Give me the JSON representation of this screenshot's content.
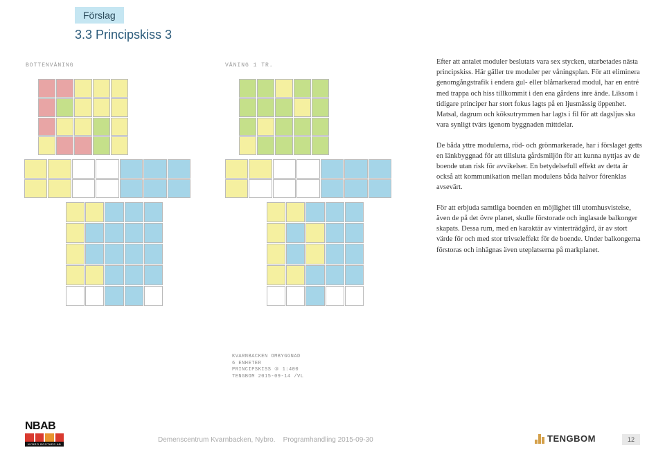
{
  "tag": "Förslag",
  "heading": "3.3 Principskiss 3",
  "paragraphs": [
    "Efter att antalet moduler beslutats vara sex stycken, utarbetades nästa principskiss. Här gäller tre moduler per våningsplan. För att eliminera genomgångstrafik i endera gul- eller blåmarkerad modul, har en entré med trappa och hiss tillkommit i den ena gårdens inre ände. Liksom i tidigare principer har stort fokus lagts på en ljusmässig öppenhet. Matsal, dagrum och köksutrymmen har lagts i fil för att dagsljus ska vara synligt tvärs igenom byggnaden mittdelar.",
    "De båda yttre modulerna, röd- och grönmarkerade, har i förslaget getts en länkbyggnad för att tillsluta gårdsmiljön för att kunna nyttjas av de boende utan risk för avvikelser. En betydelsefull effekt av detta är också att kommunikation mellan modulens båda halvor förenklas avsevärt.",
    "För att erbjuda samtliga boenden en möjlighet till utomhusvistelse, även de på det övre planet, skulle förstorade och inglasade balkonger skapats. Dessa rum, med en karaktär av vinterträdgård, är av stort värde för och med stor trivseleffekt för de boende. Under balkongerna förstoras och inhägnas även uteplatserna på markplanet."
  ],
  "plan_labels": {
    "left": "BOTTENVÅNING",
    "right": "VÅNING 1 TR."
  },
  "annotations": [
    "KVARNBACKEN  OMBYGGNAD",
    "6 ENHETER",
    "PRINCIPSKISS ③  1:400",
    "TENGBOM 2015-09-14 /VL"
  ],
  "colors": {
    "red": "#e8a5a5",
    "yellow": "#f5f0a0",
    "green": "#c5e08a",
    "blue": "#a5d5e8",
    "tag_bg": "#c5e6f2",
    "heading": "#2a5a7a",
    "nbab_red": "#d93a2f",
    "nbab_orange": "#e8942f",
    "tengbom_gold": "#d4a04a"
  },
  "footer": {
    "doc_title": "Demenscentrum Kvarnbacken, Nybro.",
    "doc_subtitle": "Programhandling 2015-09-30",
    "page": "12",
    "nbab": "NBAB",
    "nbab_sub": "NYBRO BOSTADS AB",
    "tengbom": "TENGBOM"
  },
  "floorplan": {
    "top_wing_rows": 4,
    "top_wing_cols": 5,
    "mid_wing_rows": 2,
    "mid_wing_cols": 7,
    "bot_wing_rows": 5,
    "bot_wing_cols": 5,
    "left_colors": {
      "top": [
        "#e8a5a5",
        "#e8a5a5",
        "#f5f0a0",
        "#f5f0a0",
        "#f5f0a0",
        "#e8a5a5",
        "#c5e08a",
        "#f5f0a0",
        "#f5f0a0",
        "#f5f0a0",
        "#e8a5a5",
        "#f5f0a0",
        "#f5f0a0",
        "#c5e08a",
        "#f5f0a0",
        "#f5f0a0",
        "#e8a5a5",
        "#e8a5a5",
        "#c5e08a",
        "#f5f0a0"
      ],
      "mid": [
        "#f5f0a0",
        "#f5f0a0",
        "#ffffff",
        "#ffffff",
        "#a5d5e8",
        "#a5d5e8",
        "#a5d5e8",
        "#f5f0a0",
        "#f5f0a0",
        "#ffffff",
        "#ffffff",
        "#a5d5e8",
        "#a5d5e8",
        "#a5d5e8"
      ],
      "bot": [
        "#f5f0a0",
        "#f5f0a0",
        "#a5d5e8",
        "#a5d5e8",
        "#a5d5e8",
        "#f5f0a0",
        "#a5d5e8",
        "#a5d5e8",
        "#a5d5e8",
        "#a5d5e8",
        "#f5f0a0",
        "#a5d5e8",
        "#a5d5e8",
        "#a5d5e8",
        "#a5d5e8",
        "#f5f0a0",
        "#f5f0a0",
        "#a5d5e8",
        "#a5d5e8",
        "#a5d5e8",
        "#ffffff",
        "#ffffff",
        "#a5d5e8",
        "#a5d5e8",
        "#ffffff"
      ]
    },
    "right_colors": {
      "top": [
        "#c5e08a",
        "#c5e08a",
        "#f5f0a0",
        "#c5e08a",
        "#c5e08a",
        "#c5e08a",
        "#c5e08a",
        "#c5e08a",
        "#f5f0a0",
        "#c5e08a",
        "#c5e08a",
        "#f5f0a0",
        "#c5e08a",
        "#c5e08a",
        "#c5e08a",
        "#f5f0a0",
        "#c5e08a",
        "#c5e08a",
        "#c5e08a",
        "#c5e08a"
      ],
      "mid": [
        "#f5f0a0",
        "#f5f0a0",
        "#ffffff",
        "#ffffff",
        "#a5d5e8",
        "#a5d5e8",
        "#a5d5e8",
        "#f5f0a0",
        "#ffffff",
        "#ffffff",
        "#ffffff",
        "#a5d5e8",
        "#a5d5e8",
        "#a5d5e8"
      ],
      "bot": [
        "#f5f0a0",
        "#f5f0a0",
        "#a5d5e8",
        "#a5d5e8",
        "#a5d5e8",
        "#f5f0a0",
        "#a5d5e8",
        "#f5f0a0",
        "#a5d5e8",
        "#a5d5e8",
        "#f5f0a0",
        "#a5d5e8",
        "#f5f0a0",
        "#a5d5e8",
        "#a5d5e8",
        "#f5f0a0",
        "#f5f0a0",
        "#a5d5e8",
        "#a5d5e8",
        "#a5d5e8",
        "#ffffff",
        "#ffffff",
        "#a5d5e8",
        "#ffffff",
        "#ffffff"
      ]
    }
  }
}
